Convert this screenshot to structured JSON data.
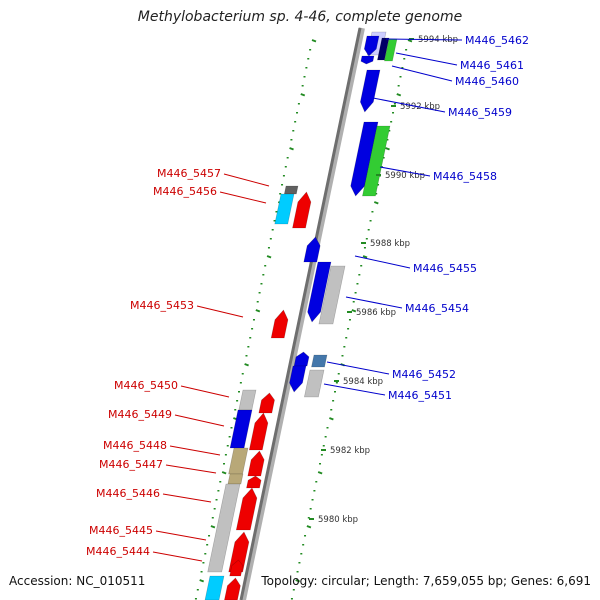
{
  "title": "Methylobacterium sp. 4-46, complete genome",
  "accession": "Accession: NC_010511",
  "topology": "Topology: circular; Length: 7,659,055 bp; Genes: 6,691",
  "colors": {
    "plus_label": "#0000cc",
    "minus_label": "#cc0000",
    "backbone": "#707070",
    "tick": "#228b22",
    "cds_blue": "#0000e0",
    "cds_red": "#ee0000",
    "cds_green": "#33cc33",
    "cds_cyan": "#00ccff",
    "cds_grey": "#c0c0c0",
    "cds_tan": "#b8a878",
    "cds_navy": "#000066",
    "cds_steel": "#4477aa",
    "cds_lavender": "#ccccff",
    "cds_darkgrey": "#606060"
  },
  "scale_labels": [
    "5994 kbp",
    "5992 kbp",
    "5990 kbp",
    "5988 kbp",
    "5986 kbp",
    "5984 kbp",
    "5982 kbp",
    "5980 kbp"
  ],
  "plus_genes": [
    "M446_5462",
    "M446_5461",
    "M446_5460",
    "M446_5459",
    "M446_5458",
    "M446_5455",
    "M446_5454",
    "M446_5452",
    "M446_5451"
  ],
  "minus_genes": [
    "M446_5457",
    "M446_5456",
    "M446_5453",
    "M446_5450",
    "M446_5449",
    "M446_5448",
    "M446_5447",
    "M446_5446",
    "M446_5445",
    "M446_5444"
  ]
}
